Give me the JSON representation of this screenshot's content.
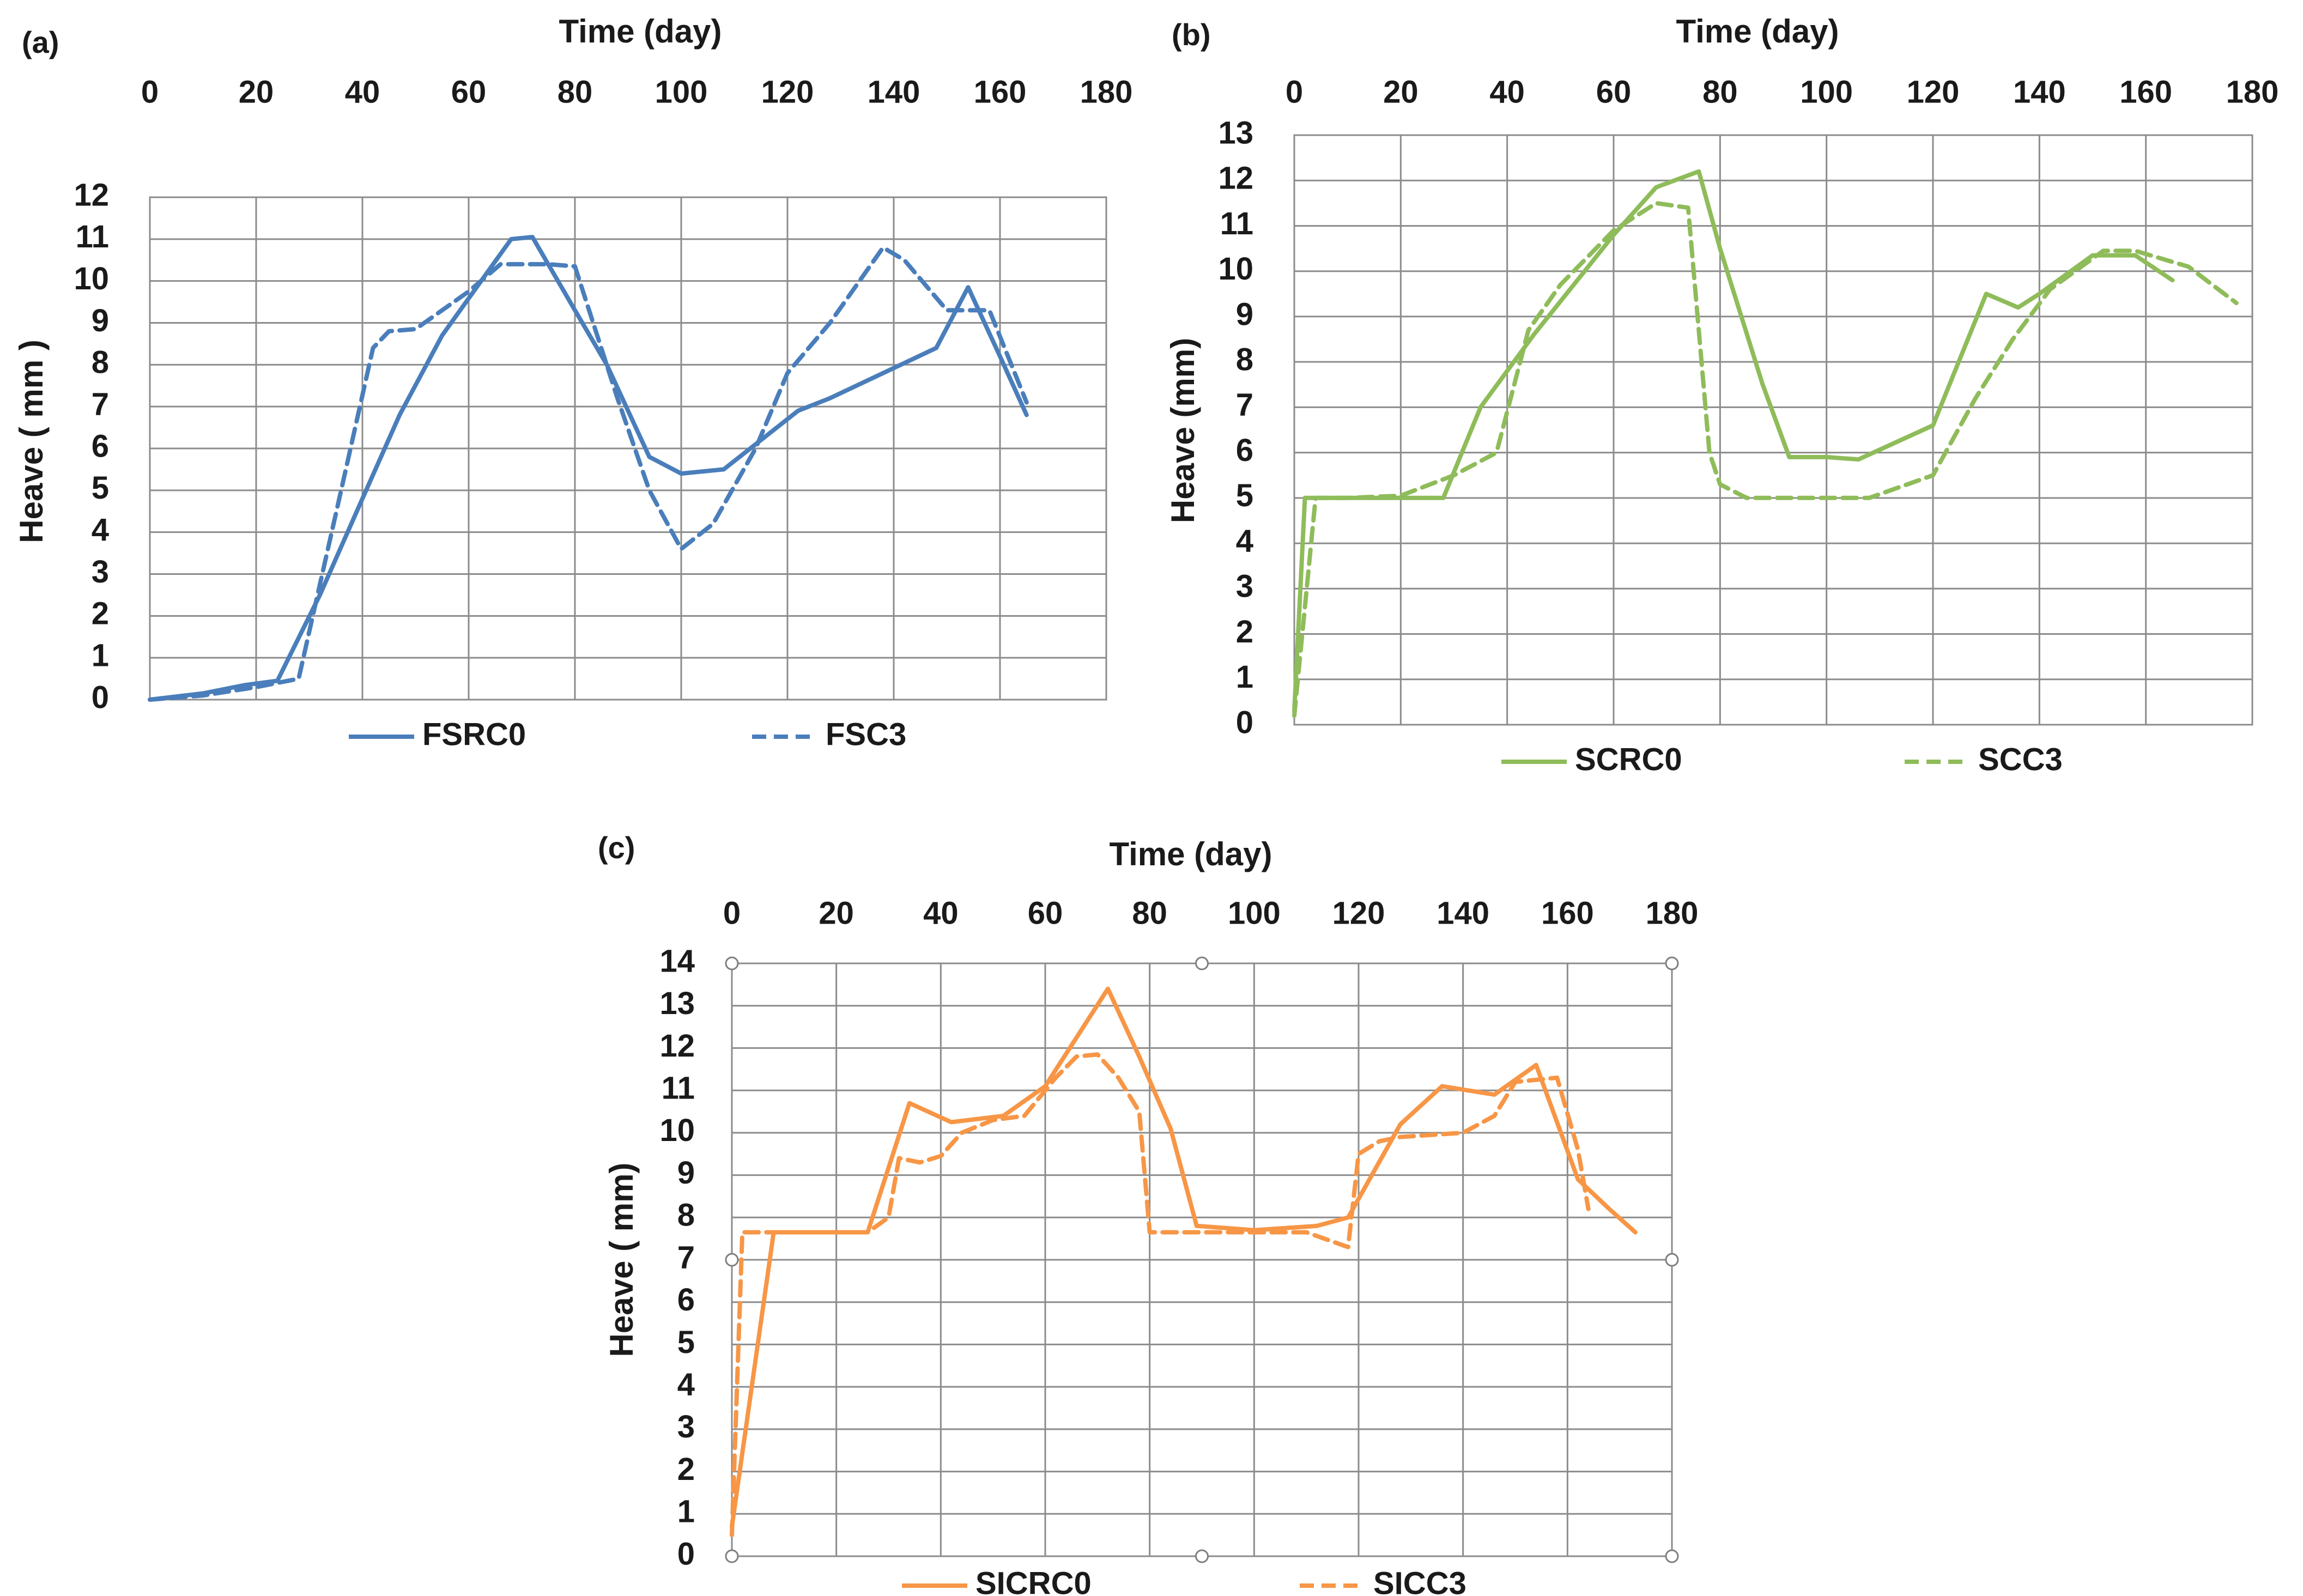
{
  "chart_data": [
    {
      "type": "line",
      "panel_label": "(a)",
      "xlabel": "Time (day)",
      "ylabel": "Heave ( mm )",
      "xlim": [
        0,
        180
      ],
      "ylim": [
        0,
        12
      ],
      "x_ticks": [
        "0",
        "20",
        "40",
        "60",
        "80",
        "100",
        "120",
        "140",
        "160",
        "180"
      ],
      "y_ticks": [
        "0",
        "1",
        "2",
        "3",
        "4",
        "5",
        "6",
        "7",
        "8",
        "9",
        "10",
        "11",
        "12"
      ],
      "grid": true,
      "legend_position": "bottom",
      "series": [
        {
          "name": "FSRC0",
          "color": "#4a7ebb",
          "dash": "solid",
          "points": [
            [
              0,
              0
            ],
            [
              10,
              0.15
            ],
            [
              18,
              0.35
            ],
            [
              24,
              0.45
            ],
            [
              32,
              2.5
            ],
            [
              40,
              4.8
            ],
            [
              47,
              6.8
            ],
            [
              55,
              8.7
            ],
            [
              68,
              11.0
            ],
            [
              72,
              11.05
            ],
            [
              80,
              9.3
            ],
            [
              86,
              8.0
            ],
            [
              94,
              5.8
            ],
            [
              100,
              5.4
            ],
            [
              108,
              5.5
            ],
            [
              115,
              6.2
            ],
            [
              122,
              6.9
            ],
            [
              128,
              7.2
            ],
            [
              148,
              8.4
            ],
            [
              154,
              9.85
            ],
            [
              160,
              8.2
            ],
            [
              165,
              6.8
            ]
          ]
        },
        {
          "name": "FSC3",
          "color": "#4a7ebb",
          "dash": "dashed",
          "points": [
            [
              0,
              0
            ],
            [
              10,
              0.1
            ],
            [
              20,
              0.3
            ],
            [
              28,
              0.5
            ],
            [
              36,
              5.0
            ],
            [
              42,
              8.4
            ],
            [
              45,
              8.8
            ],
            [
              50,
              8.85
            ],
            [
              60,
              9.75
            ],
            [
              66,
              10.4
            ],
            [
              75,
              10.4
            ],
            [
              80,
              10.35
            ],
            [
              88,
              7.2
            ],
            [
              94,
              5.0
            ],
            [
              100,
              3.6
            ],
            [
              106,
              4.2
            ],
            [
              114,
              6.0
            ],
            [
              120,
              7.8
            ],
            [
              128,
              9.0
            ],
            [
              138,
              10.8
            ],
            [
              142,
              10.5
            ],
            [
              150,
              9.3
            ],
            [
              158,
              9.3
            ],
            [
              165,
              7.1
            ]
          ]
        }
      ]
    },
    {
      "type": "line",
      "panel_label": "(b)",
      "xlabel": "Time (day)",
      "ylabel": "Heave (mm)",
      "xlim": [
        0,
        180
      ],
      "ylim": [
        0,
        13
      ],
      "x_ticks": [
        "0",
        "20",
        "40",
        "60",
        "80",
        "100",
        "120",
        "140",
        "160",
        "180"
      ],
      "y_ticks": [
        "0",
        "1",
        "2",
        "3",
        "4",
        "5",
        "6",
        "7",
        "8",
        "9",
        "10",
        "11",
        "12",
        "13"
      ],
      "grid": true,
      "legend_position": "bottom",
      "series": [
        {
          "name": "SCRC0",
          "color": "#8fbc5a",
          "dash": "solid",
          "points": [
            [
              0,
              0.3
            ],
            [
              2,
              5.0
            ],
            [
              10,
              5.0
            ],
            [
              20,
              5.0
            ],
            [
              28,
              5.0
            ],
            [
              35,
              7.0
            ],
            [
              45,
              8.6
            ],
            [
              60,
              10.8
            ],
            [
              68,
              11.85
            ],
            [
              76,
              12.2
            ],
            [
              80,
              10.5
            ],
            [
              88,
              7.5
            ],
            [
              93,
              5.9
            ],
            [
              100,
              5.9
            ],
            [
              106,
              5.85
            ],
            [
              120,
              6.6
            ],
            [
              130,
              9.5
            ],
            [
              136,
              9.2
            ],
            [
              140,
              9.5
            ],
            [
              150,
              10.35
            ],
            [
              158,
              10.35
            ],
            [
              165,
              9.8
            ]
          ]
        },
        {
          "name": "SCC3",
          "color": "#8fbc5a",
          "dash": "dashed",
          "points": [
            [
              0,
              0.2
            ],
            [
              4,
              5.0
            ],
            [
              10,
              5.0
            ],
            [
              20,
              5.05
            ],
            [
              30,
              5.5
            ],
            [
              38,
              6.0
            ],
            [
              44,
              8.7
            ],
            [
              50,
              9.7
            ],
            [
              60,
              10.9
            ],
            [
              68,
              11.5
            ],
            [
              74,
              11.4
            ],
            [
              78,
              6.0
            ],
            [
              80,
              5.3
            ],
            [
              85,
              5.0
            ],
            [
              95,
              5.0
            ],
            [
              108,
              5.0
            ],
            [
              120,
              5.5
            ],
            [
              128,
              7.2
            ],
            [
              135,
              8.5
            ],
            [
              142,
              9.6
            ],
            [
              152,
              10.45
            ],
            [
              158,
              10.45
            ],
            [
              168,
              10.1
            ],
            [
              177,
              9.3
            ]
          ]
        }
      ]
    },
    {
      "type": "line",
      "panel_label": "(c)",
      "xlabel": "Time (day)",
      "ylabel": "Heave ( mm)",
      "xlim": [
        0,
        180
      ],
      "ylim": [
        0,
        14
      ],
      "x_ticks": [
        "0",
        "20",
        "40",
        "60",
        "80",
        "100",
        "120",
        "140",
        "160",
        "180"
      ],
      "y_ticks": [
        "0",
        "1",
        "2",
        "3",
        "4",
        "5",
        "6",
        "7",
        "8",
        "9",
        "10",
        "11",
        "12",
        "13",
        "14"
      ],
      "grid": true,
      "legend_position": "bottom",
      "series": [
        {
          "name": "SICRC0",
          "color": "#f79646",
          "dash": "solid",
          "points": [
            [
              0,
              0.7
            ],
            [
              8,
              7.65
            ],
            [
              20,
              7.65
            ],
            [
              26,
              7.65
            ],
            [
              34,
              10.7
            ],
            [
              42,
              10.25
            ],
            [
              52,
              10.4
            ],
            [
              60,
              11.1
            ],
            [
              72,
              13.4
            ],
            [
              78,
              11.8
            ],
            [
              84,
              10.1
            ],
            [
              89,
              7.8
            ],
            [
              100,
              7.7
            ],
            [
              112,
              7.8
            ],
            [
              118,
              8.0
            ],
            [
              128,
              10.2
            ],
            [
              136,
              11.1
            ],
            [
              146,
              10.9
            ],
            [
              154,
              11.6
            ],
            [
              162,
              8.9
            ],
            [
              168,
              8.2
            ],
            [
              173,
              7.65
            ]
          ]
        },
        {
          "name": "SICC3",
          "color": "#f79646",
          "dash": "dashed",
          "points": [
            [
              0,
              0.5
            ],
            [
              2,
              7.65
            ],
            [
              10,
              7.65
            ],
            [
              20,
              7.65
            ],
            [
              26,
              7.65
            ],
            [
              30,
              8.0
            ],
            [
              32,
              9.4
            ],
            [
              36,
              9.3
            ],
            [
              40,
              9.45
            ],
            [
              44,
              10.0
            ],
            [
              50,
              10.3
            ],
            [
              56,
              10.4
            ],
            [
              62,
              11.3
            ],
            [
              66,
              11.8
            ],
            [
              70,
              11.85
            ],
            [
              74,
              11.3
            ],
            [
              78,
              10.5
            ],
            [
              80,
              7.65
            ],
            [
              90,
              7.65
            ],
            [
              100,
              7.65
            ],
            [
              110,
              7.65
            ],
            [
              118,
              7.3
            ],
            [
              120,
              9.5
            ],
            [
              124,
              9.8
            ],
            [
              128,
              9.9
            ],
            [
              140,
              10.0
            ],
            [
              146,
              10.4
            ],
            [
              150,
              11.2
            ],
            [
              158,
              11.3
            ],
            [
              162,
              9.6
            ],
            [
              164,
              8.2
            ]
          ]
        }
      ]
    }
  ]
}
